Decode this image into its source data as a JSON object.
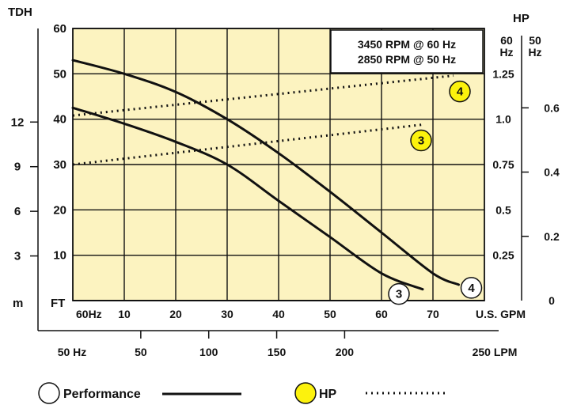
{
  "chart_data": {
    "type": "line",
    "left_axis": {
      "title": "TDH",
      "unit_label": "m",
      "ticks": [
        3,
        6,
        9,
        12
      ],
      "range": [
        0,
        13.5
      ]
    },
    "ft_axis": {
      "unit_label": "FT",
      "ticks": [
        10,
        20,
        30,
        40,
        50,
        60
      ],
      "range": [
        0,
        60
      ]
    },
    "hp60_axis": {
      "header_top": "HP",
      "header": "60 Hz",
      "ticks": [
        "1.25",
        "1.0",
        "0.75",
        "0.5",
        "0.25"
      ],
      "tick_values": [
        1.25,
        1.0,
        0.75,
        0.5,
        0.25
      ]
    },
    "hp50_axis": {
      "header": "50 Hz",
      "ticks": [
        "0.6",
        "0.4",
        "0.2",
        "0"
      ],
      "tick_values": [
        0.6,
        0.4,
        0.2,
        0
      ]
    },
    "gpm_axis": {
      "first_label": "60Hz",
      "unit_label": "U.S. GPM",
      "ticks": [
        10,
        20,
        30,
        40,
        50,
        60,
        70
      ],
      "range": [
        0,
        80
      ]
    },
    "lpm_axis": {
      "first_label": "50 Hz",
      "unit_label": "250 LPM",
      "ticks": [
        50,
        100,
        150,
        200
      ],
      "range": [
        0,
        250
      ]
    },
    "info_box": [
      "3450 RPM @ 60 Hz",
      "2850 RPM @ 50 Hz"
    ],
    "performance_curves": [
      {
        "model": "3",
        "gpm": [
          0,
          10,
          20,
          30,
          40,
          50,
          60,
          68
        ],
        "ft": [
          42.5,
          39,
          35,
          30,
          22,
          14,
          6,
          2.5
        ]
      },
      {
        "model": "4",
        "gpm": [
          0,
          10,
          20,
          30,
          40,
          50,
          60,
          70,
          75
        ],
        "ft": [
          53,
          50,
          46,
          40,
          32.5,
          24,
          15,
          6,
          3.5
        ]
      }
    ],
    "hp_curves": [
      {
        "model": "3",
        "gpm": [
          0,
          68
        ],
        "hp": [
          0.75,
          0.97
        ]
      },
      {
        "model": "4",
        "gpm": [
          0,
          74
        ],
        "hp": [
          1.02,
          1.24
        ]
      }
    ],
    "legend": [
      {
        "label": "Performance",
        "style": "solid"
      },
      {
        "label": "HP",
        "style": "dotted"
      }
    ],
    "colors": {
      "plot_bg": "#fcf3c0",
      "grid": "#111111",
      "badge_hp": "#fcf20d"
    }
  }
}
